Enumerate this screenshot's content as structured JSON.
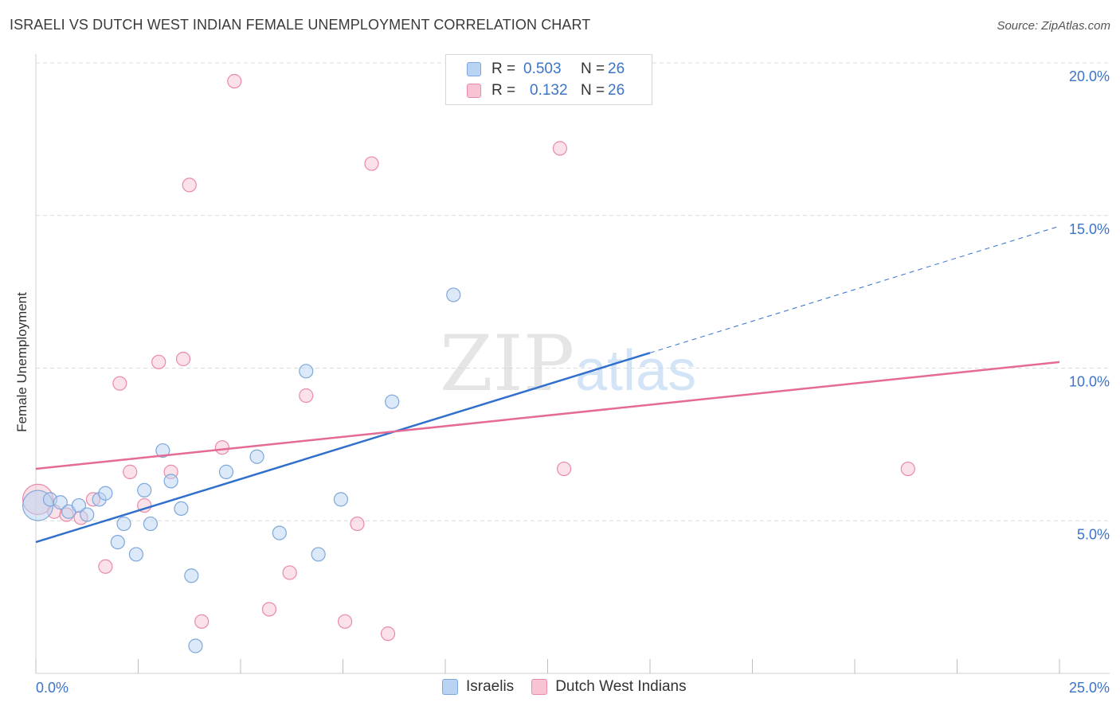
{
  "header": {
    "title": "ISRAELI VS DUTCH WEST INDIAN FEMALE UNEMPLOYMENT CORRELATION CHART",
    "source": "Source: ZipAtlas.com"
  },
  "watermark": {
    "zip": "ZIP",
    "atlas": "atlas"
  },
  "legend": {
    "rows": [
      {
        "r_label": "R =",
        "r_value": "0.503",
        "n_label": "N =",
        "n_value": "26"
      },
      {
        "r_label": "R =",
        "r_value": "0.132",
        "n_label": "N =",
        "n_value": "26"
      }
    ]
  },
  "colors": {
    "israelis_fill": "#b9d3f2",
    "israelis_stroke": "#7ea7db",
    "israelis_line": "#3070cc",
    "dutch_fill": "#f8c4d3",
    "dutch_stroke": "#e98aa8",
    "dutch_line": "#e56a94",
    "tick_label": "#3b74c9",
    "grid": "#dcdcdc"
  },
  "chart_data": {
    "type": "scatter",
    "title": "ISRAELI VS DUTCH WEST INDIAN FEMALE UNEMPLOYMENT CORRELATION CHART",
    "xlabel": "",
    "ylabel": "Female Unemployment",
    "xlim": [
      0,
      25
    ],
    "ylim": [
      0,
      20.5
    ],
    "x_tick_labels": [
      {
        "value": 0,
        "label": "0.0%"
      },
      {
        "value": 25,
        "label": "25.0%"
      }
    ],
    "y_tick_labels": [
      {
        "value": 5,
        "label": "5.0%"
      },
      {
        "value": 10,
        "label": "10.0%"
      },
      {
        "value": 15,
        "label": "15.0%"
      },
      {
        "value": 20,
        "label": "20.0%"
      }
    ],
    "grid": true,
    "legend_position": "top-center",
    "series": [
      {
        "name": "Israelis",
        "color": "#7ea7db",
        "points": [
          {
            "x": 0.05,
            "y": 5.5,
            "size": "large"
          },
          {
            "x": 0.35,
            "y": 5.7
          },
          {
            "x": 0.6,
            "y": 5.6
          },
          {
            "x": 0.8,
            "y": 5.3
          },
          {
            "x": 1.05,
            "y": 5.5
          },
          {
            "x": 1.25,
            "y": 5.2
          },
          {
            "x": 1.55,
            "y": 5.7
          },
          {
            "x": 1.7,
            "y": 5.9
          },
          {
            "x": 2.0,
            "y": 4.3
          },
          {
            "x": 2.15,
            "y": 4.9
          },
          {
            "x": 2.45,
            "y": 3.9
          },
          {
            "x": 2.65,
            "y": 6.0
          },
          {
            "x": 2.8,
            "y": 4.9
          },
          {
            "x": 3.1,
            "y": 7.3
          },
          {
            "x": 3.3,
            "y": 6.3
          },
          {
            "x": 3.55,
            "y": 5.4
          },
          {
            "x": 3.8,
            "y": 3.2
          },
          {
            "x": 3.9,
            "y": 0.9
          },
          {
            "x": 4.65,
            "y": 6.6
          },
          {
            "x": 5.4,
            "y": 7.1
          },
          {
            "x": 5.95,
            "y": 4.6
          },
          {
            "x": 6.6,
            "y": 9.9
          },
          {
            "x": 6.9,
            "y": 3.9
          },
          {
            "x": 7.45,
            "y": 5.7
          },
          {
            "x": 8.7,
            "y": 8.9
          },
          {
            "x": 10.2,
            "y": 12.4
          }
        ],
        "trend": {
          "x0": 0,
          "y0": 4.3,
          "x1": 15,
          "y1": 10.5,
          "dashed_to_x": 25,
          "dashed_to_y": 14.65
        }
      },
      {
        "name": "Dutch West Indians",
        "color": "#e98aa8",
        "points": [
          {
            "x": 0.05,
            "y": 5.7,
            "size": "large"
          },
          {
            "x": 0.45,
            "y": 5.3
          },
          {
            "x": 0.75,
            "y": 5.2
          },
          {
            "x": 1.1,
            "y": 5.1
          },
          {
            "x": 1.4,
            "y": 5.7
          },
          {
            "x": 1.7,
            "y": 3.5
          },
          {
            "x": 2.05,
            "y": 9.5
          },
          {
            "x": 2.3,
            "y": 6.6
          },
          {
            "x": 2.65,
            "y": 5.5
          },
          {
            "x": 3.0,
            "y": 10.2
          },
          {
            "x": 3.3,
            "y": 6.6
          },
          {
            "x": 3.6,
            "y": 10.3
          },
          {
            "x": 3.75,
            "y": 16.0
          },
          {
            "x": 4.05,
            "y": 1.7
          },
          {
            "x": 4.55,
            "y": 7.4
          },
          {
            "x": 4.85,
            "y": 19.4
          },
          {
            "x": 5.7,
            "y": 2.1
          },
          {
            "x": 6.2,
            "y": 3.3
          },
          {
            "x": 6.6,
            "y": 9.1
          },
          {
            "x": 7.55,
            "y": 1.7
          },
          {
            "x": 7.85,
            "y": 4.9
          },
          {
            "x": 8.2,
            "y": 16.7
          },
          {
            "x": 8.6,
            "y": 1.3
          },
          {
            "x": 12.8,
            "y": 17.2
          },
          {
            "x": 12.9,
            "y": 6.7
          },
          {
            "x": 21.3,
            "y": 6.7
          }
        ],
        "trend": {
          "x0": 0,
          "y0": 6.7,
          "x1": 25,
          "y1": 10.2
        }
      }
    ]
  },
  "bottom_legend": {
    "items": [
      "Israelis",
      "Dutch West Indians"
    ]
  }
}
